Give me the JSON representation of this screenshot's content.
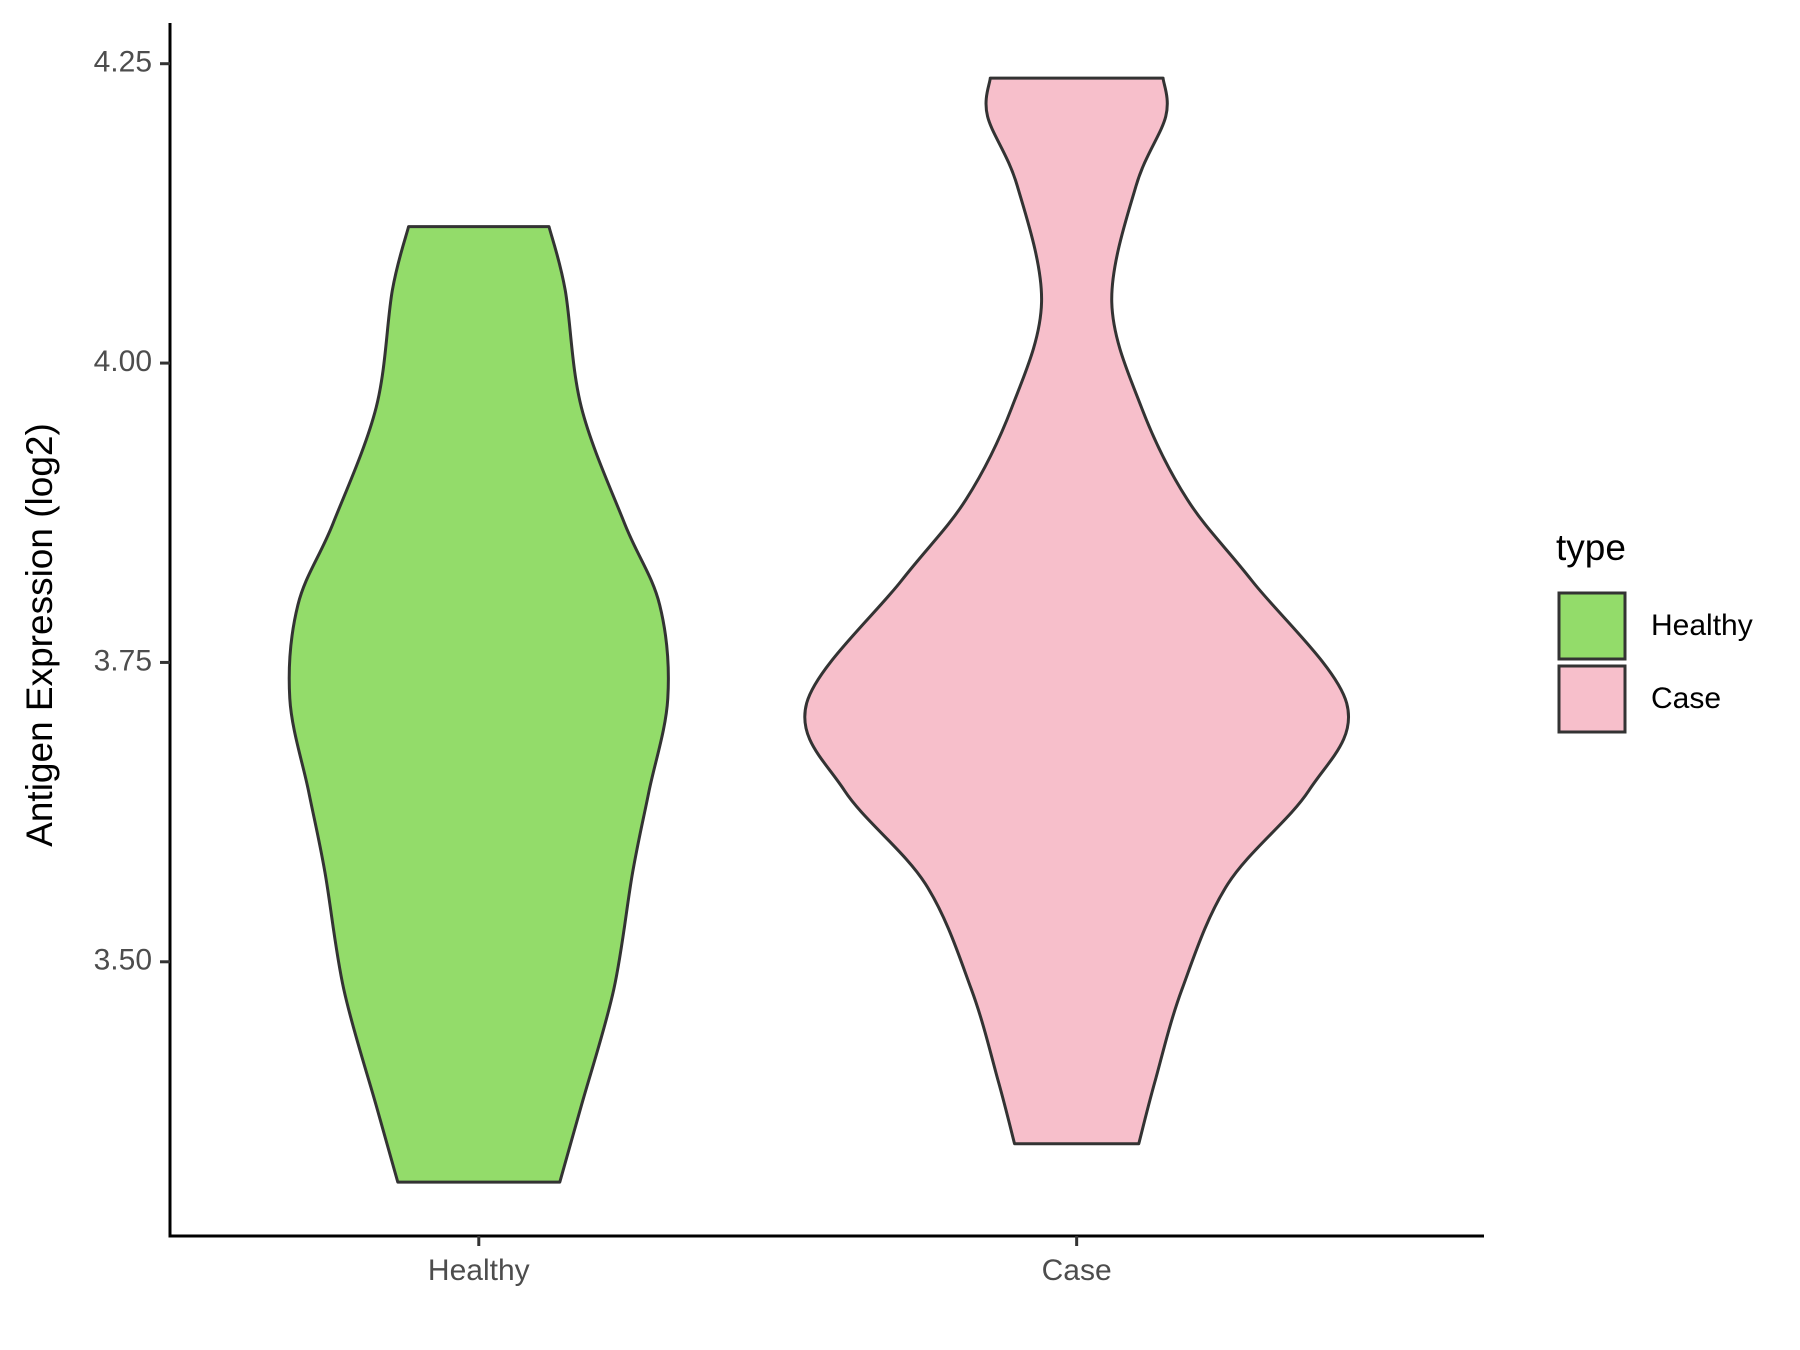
{
  "chart_data": {
    "type": "violin",
    "y_label": "Antigen Expression (log2)",
    "categories": [
      "Healthy",
      "Case"
    ],
    "legend_title": "type",
    "legend_position": "right",
    "series": [
      {
        "name": "Healthy",
        "color": "#93dc6a",
        "y": [
          4.114,
          4.061,
          3.963,
          3.866,
          3.798,
          3.72,
          3.642,
          3.575,
          3.477,
          3.38,
          3.316
        ],
        "density": [
          0.26,
          0.32,
          0.38,
          0.54,
          0.67,
          0.7,
          0.63,
          0.57,
          0.5,
          0.38,
          0.3
        ]
      },
      {
        "name": "Case",
        "color": "#f7bfcb",
        "y": [
          4.238,
          4.206,
          4.148,
          4.051,
          3.963,
          3.886,
          3.818,
          3.716,
          3.643,
          3.565,
          3.477,
          3.4,
          3.348
        ],
        "density": [
          0.32,
          0.33,
          0.22,
          0.13,
          0.24,
          0.41,
          0.65,
          1.0,
          0.86,
          0.56,
          0.39,
          0.29,
          0.23
        ]
      }
    ],
    "ylim": [
      3.271,
      4.284
    ],
    "yticks": [
      {
        "value": 3.5,
        "label": "3.50"
      },
      {
        "value": 3.75,
        "label": "3.75"
      },
      {
        "value": 4,
        "label": "4.00"
      },
      {
        "value": 4.25,
        "label": "4.25"
      }
    ]
  }
}
